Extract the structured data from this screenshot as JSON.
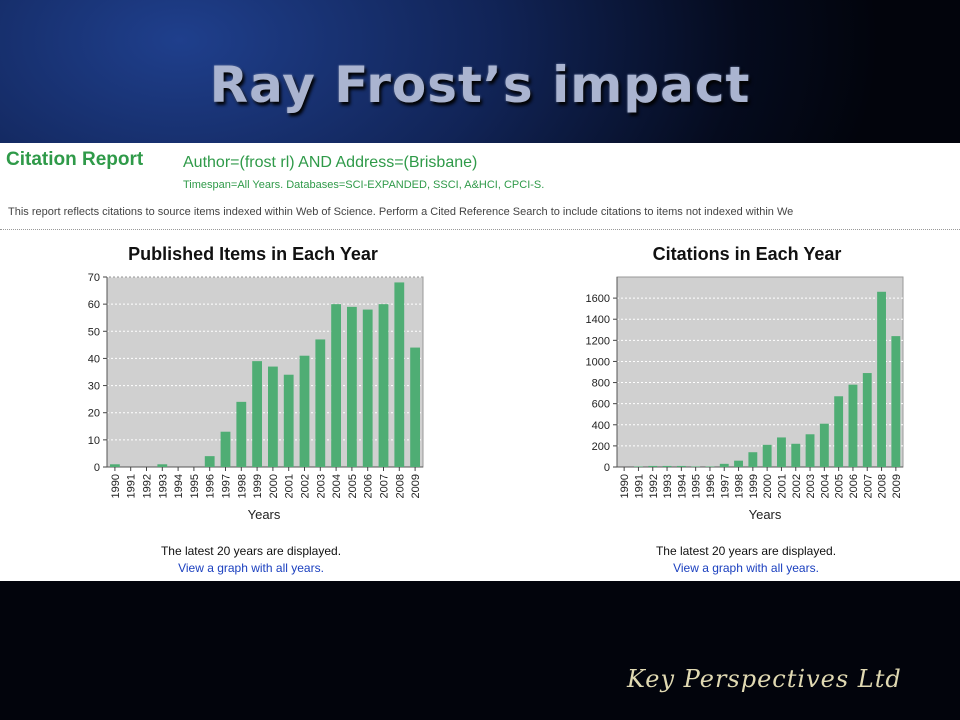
{
  "slide": {
    "title": "Ray Frost’s impact",
    "brand": "Key Perspectives Ltd"
  },
  "report": {
    "title": "Citation Report",
    "query": "Author=(frost rl) AND Address=(Brisbane)",
    "meta": "Timespan=All Years. Databases=SCI-EXPANDED, SSCI, A&HCI, CPCI-S.",
    "note": "This report reflects citations to source items indexed within Web of Science. Perform a Cited Reference Search to include citations to items not indexed within We",
    "caption_left": "The latest 20 years are displayed.",
    "link_left": "View a graph with all years.",
    "caption_right": "The latest 20 years are displayed.",
    "link_right": "View a graph with all years."
  },
  "colors": {
    "bar": "#4fad74",
    "plot_bg": "#d0d0d0",
    "title_green": "#2f9a49"
  },
  "chart_data": [
    {
      "type": "bar",
      "title": "Published Items in Each Year",
      "xlabel": "Years",
      "ylabel": "",
      "categories": [
        "1990",
        "1991",
        "1992",
        "1993",
        "1994",
        "1995",
        "1996",
        "1997",
        "1998",
        "1999",
        "2000",
        "2001",
        "2002",
        "2003",
        "2004",
        "2005",
        "2006",
        "2007",
        "2008",
        "2009"
      ],
      "values": [
        1,
        0,
        0,
        1,
        0,
        0,
        4,
        13,
        24,
        39,
        37,
        34,
        41,
        47,
        60,
        59,
        58,
        60,
        68,
        44
      ],
      "ylim": [
        0,
        70
      ],
      "yticks": [
        0,
        10,
        20,
        30,
        40,
        50,
        60,
        70
      ],
      "grid": true
    },
    {
      "type": "bar",
      "title": "Citations in Each Year",
      "xlabel": "Years",
      "ylabel": "",
      "categories": [
        "1990",
        "1991",
        "1992",
        "1993",
        "1994",
        "1995",
        "1996",
        "1997",
        "1998",
        "1999",
        "2000",
        "2001",
        "2002",
        "2003",
        "2004",
        "2005",
        "2006",
        "2007",
        "2008",
        "2009"
      ],
      "values": [
        0,
        5,
        10,
        10,
        10,
        5,
        5,
        30,
        60,
        140,
        210,
        280,
        220,
        310,
        410,
        670,
        780,
        890,
        1660,
        1240
      ],
      "ylim": [
        0,
        1800
      ],
      "yticks": [
        0,
        200,
        400,
        600,
        800,
        1000,
        1200,
        1400,
        1600
      ],
      "grid": true
    }
  ]
}
